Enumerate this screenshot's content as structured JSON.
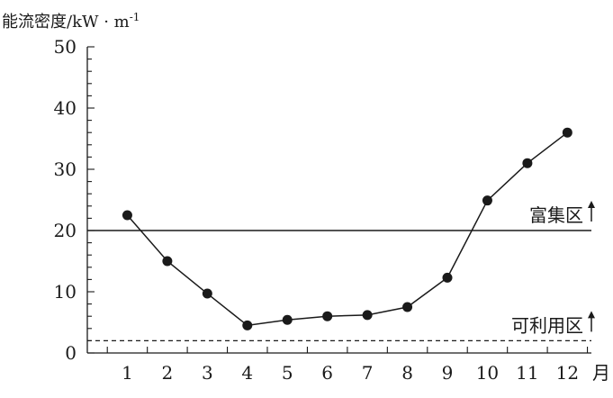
{
  "chart_data": {
    "type": "line",
    "ylabel": "能流密度/kW · m",
    "ylabel_sup": "-1",
    "xunit": "月",
    "x": [
      1,
      2,
      3,
      4,
      5,
      6,
      7,
      8,
      9,
      10,
      11,
      12
    ],
    "x_tick_labels": [
      "1",
      "2",
      "3",
      "4",
      "5",
      "6",
      "7",
      "8",
      "9",
      "10",
      "11",
      "12"
    ],
    "y_tick_labels": [
      "0",
      "10",
      "20",
      "30",
      "40",
      "50"
    ],
    "y_ticks": [
      0,
      10,
      20,
      30,
      40,
      50
    ],
    "ylim": [
      0,
      50
    ],
    "xlim": [
      0,
      12.6
    ],
    "series": [
      {
        "values": [
          22.5,
          15.0,
          9.7,
          4.5,
          5.4,
          6.0,
          6.2,
          7.5,
          12.3,
          24.9,
          31.0,
          36.0
        ]
      }
    ],
    "reference_lines": [
      {
        "y": 20,
        "style": "solid",
        "label": "富集区"
      },
      {
        "y": 2,
        "style": "dashed",
        "label": "可利用区"
      }
    ],
    "grid": false,
    "marker": "filled-circle",
    "color": "#1a1a1a"
  }
}
